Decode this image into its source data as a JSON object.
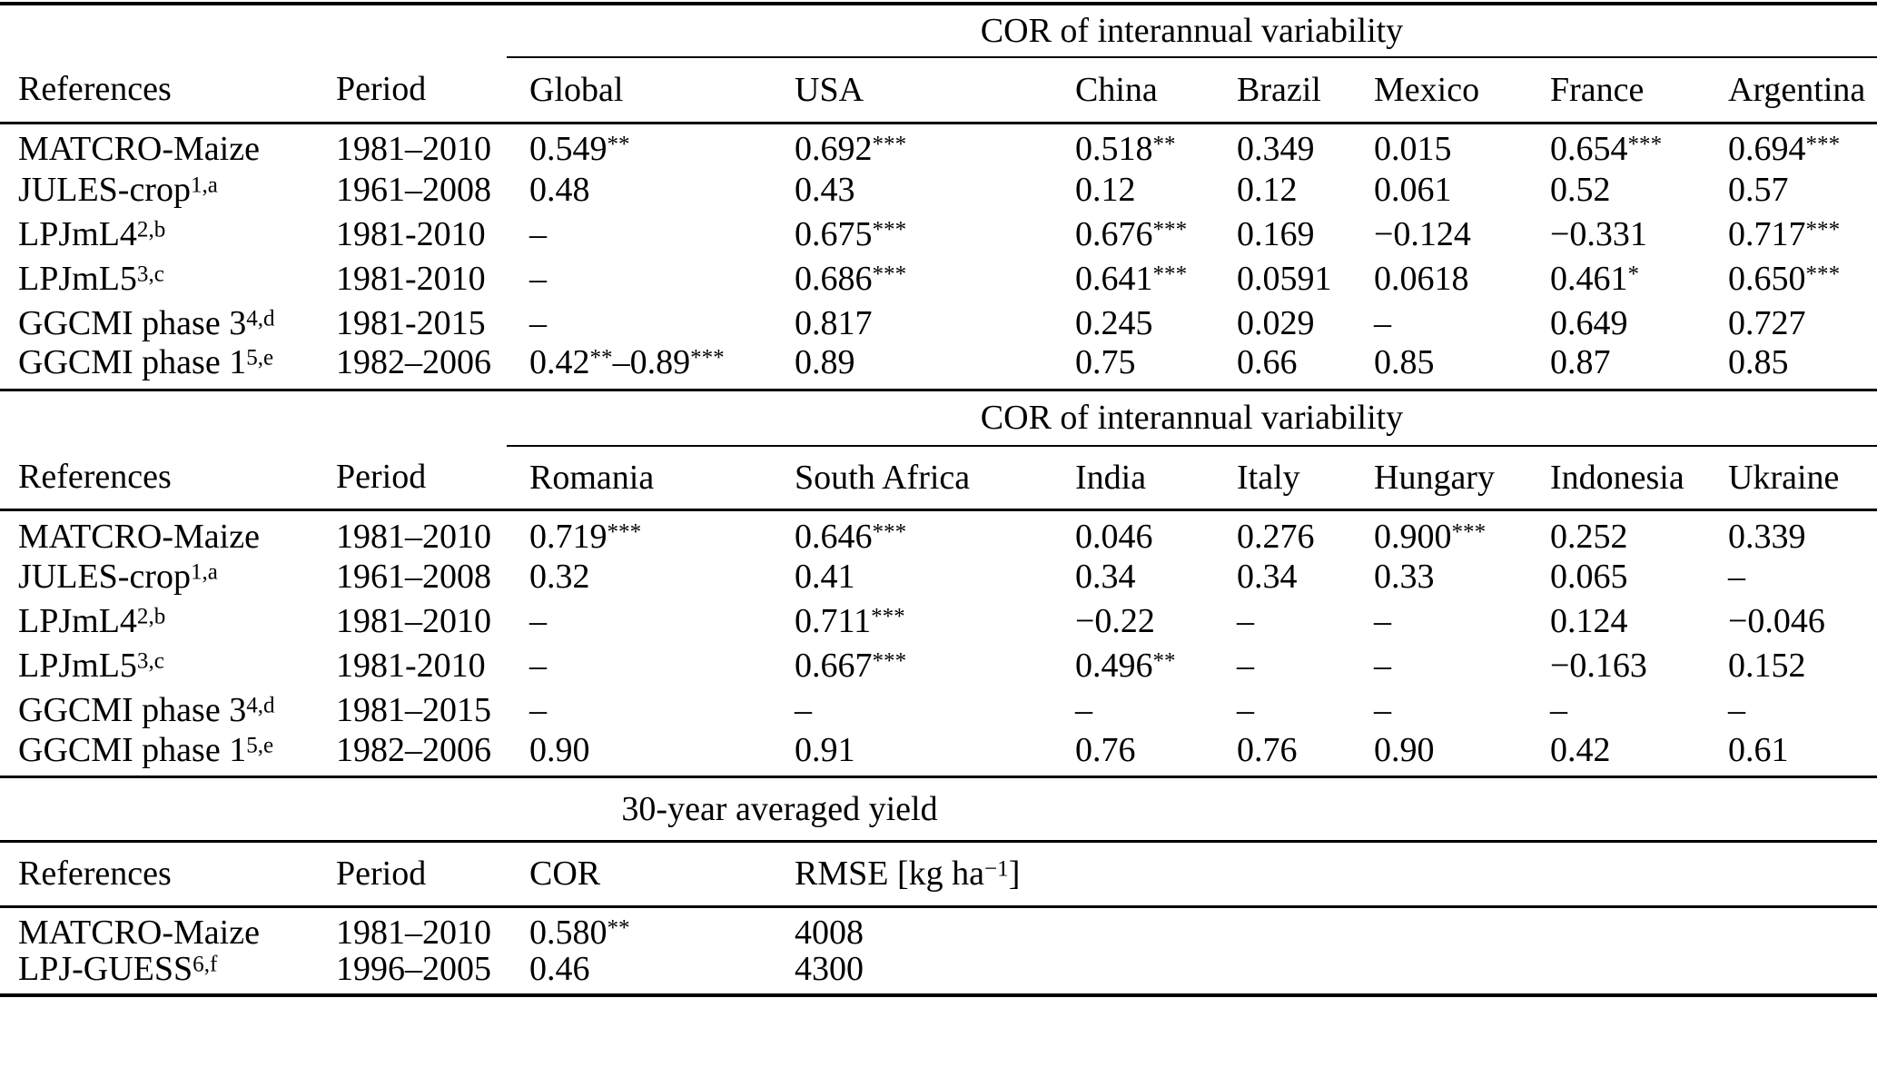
{
  "tables": [
    {
      "span_header": "COR of interannual variability",
      "columns": [
        "References",
        "Period",
        "Global",
        "USA",
        "China",
        "Brazil",
        "Mexico",
        "France",
        "Argentina"
      ],
      "rows": [
        [
          "MATCRO-Maize",
          "1981–2010",
          "0.549^{**}",
          "0.692^{***}",
          "0.518^{**}",
          "0.349",
          "0.015",
          "0.654^{***}",
          "0.694^{***}"
        ],
        [
          "JULES-crop^{1,a}",
          "1961–2008",
          "0.48",
          "0.43",
          "0.12",
          "0.12",
          "0.061",
          "0.52",
          "0.57"
        ],
        [
          "LPJmL4^{2,b}",
          "1981-2010",
          "–",
          "0.675^{***}",
          "0.676^{***}",
          "0.169",
          "−0.124",
          "−0.331",
          "0.717^{***}"
        ],
        [
          "LPJmL5^{3,c}",
          "1981-2010",
          "–",
          "0.686^{***}",
          "0.641^{***}",
          "0.0591",
          "0.0618",
          "0.461^{*}",
          "0.650^{***}"
        ],
        [
          "GGCMI phase 3^{4,d}",
          "1981-2015",
          "–",
          "0.817",
          "0.245",
          "0.029",
          "–",
          "0.649",
          "0.727"
        ],
        [
          "GGCMI phase 1^{5,e}",
          "1982–2006",
          "0.42^{**}–0.89^{***}",
          "0.89",
          "0.75",
          "0.66",
          "0.85",
          "0.87",
          "0.85"
        ]
      ]
    },
    {
      "span_header": "COR of interannual variability",
      "columns": [
        "References",
        "Period",
        "Romania",
        "South Africa",
        "India",
        "Italy",
        "Hungary",
        "Indonesia",
        "Ukraine"
      ],
      "rows": [
        [
          "MATCRO-Maize",
          "1981–2010",
          "0.719^{***}",
          "0.646^{***}",
          "0.046",
          "0.276",
          "0.900^{***}",
          "0.252",
          "0.339"
        ],
        [
          "JULES-crop^{1,a}",
          "1961–2008",
          "0.32",
          "0.41",
          "0.34",
          "0.34",
          "0.33",
          "0.065",
          "–"
        ],
        [
          "LPJmL4^{2,b}",
          "1981–2010",
          "–",
          "0.711^{***}",
          "−0.22",
          "–",
          "–",
          "0.124",
          "−0.046"
        ],
        [
          "LPJmL5^{3,c}",
          "1981-2010",
          "–",
          "0.667^{***}",
          "0.496^{**}",
          "–",
          "–",
          "−0.163",
          "0.152"
        ],
        [
          "GGCMI phase 3^{4,d}",
          "1981–2015",
          "–",
          "–",
          "–",
          "–",
          "–",
          "–",
          "–"
        ],
        [
          "GGCMI phase 1^{5,e}",
          "1982–2006",
          "0.90",
          "0.91",
          "0.76",
          "0.76",
          "0.90",
          "0.42",
          "0.61"
        ]
      ]
    },
    {
      "span_header": "30-year averaged yield",
      "columns": [
        "References",
        "Period",
        "COR",
        "RMSE [kg ha^{−1}]"
      ],
      "rows": [
        [
          "MATCRO-Maize",
          "1981–2010",
          "0.580^{**}",
          "4008"
        ],
        [
          "LPJ-GUESS^{6,f}",
          "1996–2005",
          "0.46",
          "4300"
        ]
      ]
    }
  ]
}
